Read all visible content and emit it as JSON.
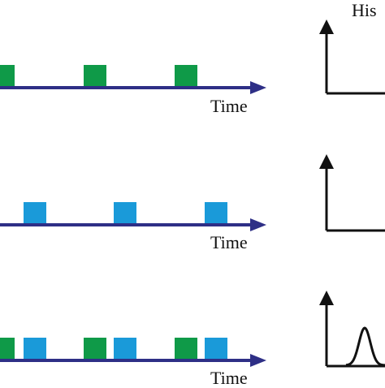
{
  "title_fragment": "His",
  "colors": {
    "axis": "#2e2f86",
    "green": "#0f9a48",
    "blue": "#1a9ad9",
    "histogram": "#111111"
  },
  "rows": [
    {
      "time_label": "Time",
      "pulses": [
        {
          "t": 0,
          "color": "green"
        },
        {
          "t": 1,
          "color": "green"
        },
        {
          "t": 2,
          "color": "green"
        }
      ],
      "histogram": "empty"
    },
    {
      "time_label": "Time",
      "pulses": [
        {
          "t": 0,
          "color": "blue"
        },
        {
          "t": 1,
          "color": "blue"
        },
        {
          "t": 2,
          "color": "blue"
        }
      ],
      "histogram": "empty"
    },
    {
      "time_label": "Time",
      "pulses": [
        {
          "t": 0,
          "color": "green"
        },
        {
          "t": 0,
          "color": "blue"
        },
        {
          "t": 1,
          "color": "green"
        },
        {
          "t": 1,
          "color": "blue"
        },
        {
          "t": 2,
          "color": "green"
        },
        {
          "t": 2,
          "color": "blue"
        }
      ],
      "histogram": "peak"
    }
  ]
}
